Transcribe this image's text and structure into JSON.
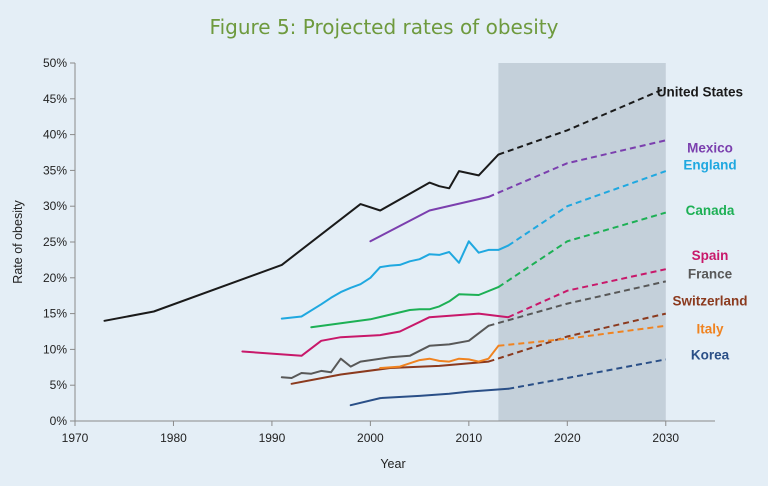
{
  "title": "Figure 5: Projected rates of obesity",
  "colors": {
    "background": "#e4eef6",
    "title": "#6e9a3e",
    "projection_band": "#c4d0da",
    "axis": "#8a8a8a"
  },
  "chart_data": {
    "type": "line",
    "title": "Figure 5: Projected rates of obesity",
    "xlabel": "Year",
    "ylabel": "Rate of obesity",
    "xlim": [
      1970,
      2035
    ],
    "ylim": [
      0,
      50
    ],
    "x_ticks": [
      "1970",
      "1980",
      "1990",
      "2000",
      "2010",
      "2020",
      "2030"
    ],
    "y_ticks": [
      "0%",
      "5%",
      "10%",
      "15%",
      "20%",
      "25%",
      "30%",
      "35%",
      "40%",
      "45%",
      "50%"
    ],
    "projection_band": {
      "x_start": 2013,
      "x_end": 2030
    },
    "grid": false,
    "legend": "direct labels at right",
    "series": [
      {
        "name": "United States",
        "color": "#1a1a1a",
        "observed": [
          [
            1973,
            14.0
          ],
          [
            1978,
            15.3
          ],
          [
            1991,
            21.8
          ],
          [
            1999,
            30.3
          ],
          [
            2001,
            29.4
          ],
          [
            2006,
            33.3
          ],
          [
            2007,
            32.8
          ],
          [
            2008,
            32.5
          ],
          [
            2009,
            34.9
          ],
          [
            2011,
            34.3
          ],
          [
            2013,
            37.2
          ]
        ],
        "projected": [
          [
            2013,
            37.2
          ],
          [
            2020,
            40.6
          ],
          [
            2030,
            46.5
          ]
        ]
      },
      {
        "name": "Mexico",
        "color": "#7b3fae",
        "observed": [
          [
            2000,
            25.1
          ],
          [
            2006,
            29.4
          ],
          [
            2012,
            31.3
          ]
        ],
        "projected": [
          [
            2012,
            31.3
          ],
          [
            2020,
            36.0
          ],
          [
            2030,
            39.2
          ]
        ]
      },
      {
        "name": "England",
        "color": "#1fa8e0",
        "observed": [
          [
            1991,
            14.3
          ],
          [
            1993,
            14.6
          ],
          [
            1995,
            16.3
          ],
          [
            1996,
            17.2
          ],
          [
            1997,
            18.0
          ],
          [
            1998,
            18.6
          ],
          [
            1999,
            19.1
          ],
          [
            2000,
            20.0
          ],
          [
            2001,
            21.5
          ],
          [
            2002,
            21.7
          ],
          [
            2003,
            21.8
          ],
          [
            2004,
            22.3
          ],
          [
            2005,
            22.6
          ],
          [
            2006,
            23.3
          ],
          [
            2007,
            23.2
          ],
          [
            2008,
            23.6
          ],
          [
            2009,
            22.1
          ],
          [
            2010,
            25.1
          ],
          [
            2011,
            23.5
          ],
          [
            2012,
            23.9
          ],
          [
            2013,
            23.9
          ],
          [
            2014,
            24.5
          ]
        ],
        "projected": [
          [
            2014,
            24.5
          ],
          [
            2020,
            30.0
          ],
          [
            2030,
            34.9
          ]
        ]
      },
      {
        "name": "Canada",
        "color": "#1db055",
        "observed": [
          [
            1994,
            13.1
          ],
          [
            2000,
            14.2
          ],
          [
            2004,
            15.5
          ],
          [
            2005,
            15.6
          ],
          [
            2006,
            15.6
          ],
          [
            2007,
            16.0
          ],
          [
            2008,
            16.7
          ],
          [
            2009,
            17.7
          ],
          [
            2011,
            17.6
          ],
          [
            2013,
            18.7
          ]
        ],
        "projected": [
          [
            2013,
            18.7
          ],
          [
            2020,
            25.1
          ],
          [
            2030,
            29.1
          ]
        ]
      },
      {
        "name": "Spain",
        "color": "#c8186a",
        "observed": [
          [
            1987,
            9.7
          ],
          [
            1993,
            9.1
          ],
          [
            1995,
            11.2
          ],
          [
            1997,
            11.7
          ],
          [
            2001,
            12.0
          ],
          [
            2003,
            12.5
          ],
          [
            2006,
            14.5
          ],
          [
            2011,
            15.0
          ],
          [
            2014,
            14.5
          ]
        ],
        "projected": [
          [
            2014,
            14.5
          ],
          [
            2020,
            18.2
          ],
          [
            2030,
            21.2
          ]
        ]
      },
      {
        "name": "France",
        "color": "#585858",
        "observed": [
          [
            1991,
            6.1
          ],
          [
            1992,
            6.0
          ],
          [
            1993,
            6.7
          ],
          [
            1994,
            6.6
          ],
          [
            1995,
            7.0
          ],
          [
            1996,
            6.8
          ],
          [
            1997,
            8.7
          ],
          [
            1998,
            7.6
          ],
          [
            1999,
            8.3
          ],
          [
            2002,
            8.9
          ],
          [
            2004,
            9.1
          ],
          [
            2006,
            10.5
          ],
          [
            2008,
            10.7
          ],
          [
            2010,
            11.2
          ],
          [
            2012,
            13.3
          ]
        ],
        "projected": [
          [
            2012,
            13.3
          ],
          [
            2020,
            16.4
          ],
          [
            2030,
            19.5
          ]
        ]
      },
      {
        "name": "Switzerland",
        "color": "#8b3a1e",
        "observed": [
          [
            1992,
            5.2
          ],
          [
            1997,
            6.5
          ],
          [
            2002,
            7.4
          ],
          [
            2007,
            7.7
          ],
          [
            2012,
            8.3
          ]
        ],
        "projected": [
          [
            2012,
            8.3
          ],
          [
            2020,
            11.8
          ],
          [
            2030,
            15.0
          ]
        ]
      },
      {
        "name": "Italy",
        "color": "#f08320",
        "observed": [
          [
            2001,
            7.4
          ],
          [
            2003,
            7.6
          ],
          [
            2005,
            8.5
          ],
          [
            2006,
            8.7
          ],
          [
            2007,
            8.4
          ],
          [
            2008,
            8.3
          ],
          [
            2009,
            8.7
          ],
          [
            2010,
            8.6
          ],
          [
            2011,
            8.3
          ],
          [
            2012,
            8.7
          ],
          [
            2013,
            10.5
          ]
        ],
        "projected": [
          [
            2013,
            10.5
          ],
          [
            2020,
            11.5
          ],
          [
            2030,
            13.3
          ]
        ]
      },
      {
        "name": "Korea",
        "color": "#2a4f87",
        "observed": [
          [
            1998,
            2.2
          ],
          [
            2001,
            3.2
          ],
          [
            2005,
            3.5
          ],
          [
            2008,
            3.8
          ],
          [
            2010,
            4.1
          ],
          [
            2014,
            4.5
          ]
        ],
        "projected": [
          [
            2014,
            4.5
          ],
          [
            2020,
            6.0
          ],
          [
            2030,
            8.6
          ]
        ]
      }
    ]
  }
}
